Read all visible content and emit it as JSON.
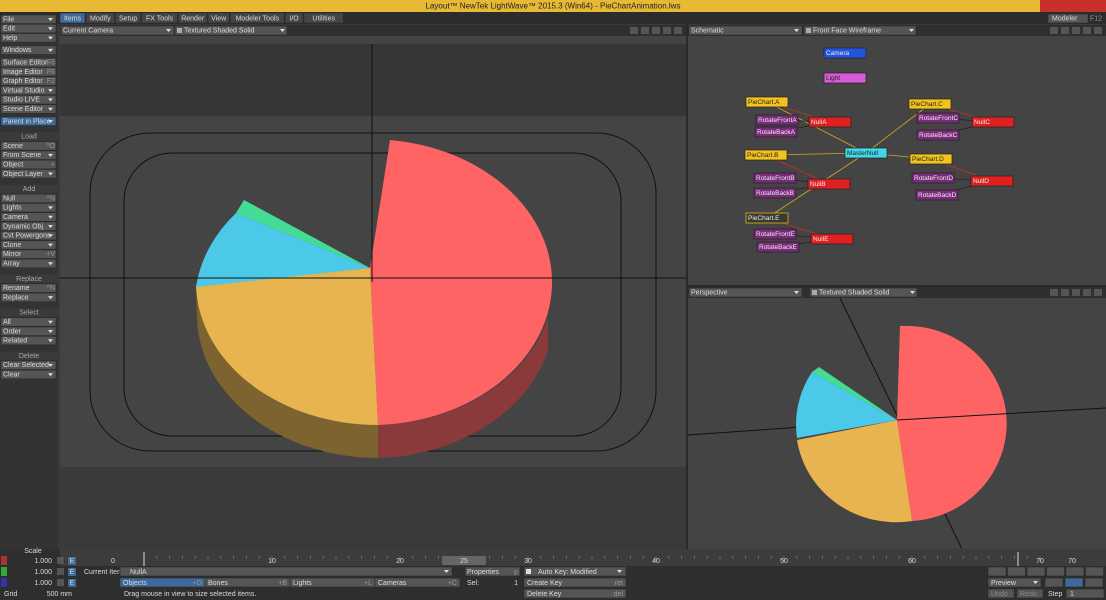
{
  "title": "Layout™ NewTek LightWave™ 2015.3 (Win64) - PieChartAnimation.lws",
  "tabs": [
    "Items",
    "Modify",
    "Setup",
    "FX Tools",
    "Render",
    "View",
    "Modeler Tools",
    "I/O",
    "Utilities"
  ],
  "modeler": {
    "label": "Modeler",
    "shortcut": "F12"
  },
  "left_panel": {
    "top": [
      {
        "label": "File"
      },
      {
        "label": "Edit"
      },
      {
        "label": "Help"
      },
      {
        "label": "Windows"
      },
      {
        "label": "Surface Editor",
        "shortcut": "F5"
      },
      {
        "label": "Image Editor",
        "shortcut": "F6"
      },
      {
        "label": "Graph Editor",
        "shortcut": "F2"
      },
      {
        "label": "Virtual Studio"
      },
      {
        "label": "Studio LIVE"
      },
      {
        "label": "Scene Editor"
      },
      {
        "label": "Parent in Place"
      }
    ],
    "sections": [
      {
        "header": "Load",
        "items": [
          {
            "label": "Scene",
            "shortcut": "^O"
          },
          {
            "label": "From Scene"
          },
          {
            "label": "Object",
            "shortcut": "+"
          },
          {
            "label": "Object Layer"
          }
        ]
      },
      {
        "header": "Add",
        "items": [
          {
            "label": "Null",
            "shortcut": "^N"
          },
          {
            "label": "Lights"
          },
          {
            "label": "Camera"
          },
          {
            "label": "Dynamic Obj"
          },
          {
            "label": "Cvt Powergons"
          },
          {
            "label": "Clone"
          },
          {
            "label": "Mirror",
            "shortcut": "+V"
          },
          {
            "label": "Array"
          }
        ]
      },
      {
        "header": "Replace",
        "items": [
          {
            "label": "Rename",
            "shortcut": "^N"
          },
          {
            "label": "Replace"
          }
        ]
      },
      {
        "header": "Select",
        "items": [
          {
            "label": "All"
          },
          {
            "label": "Order"
          },
          {
            "label": "Related"
          }
        ]
      },
      {
        "header": "Delete",
        "items": [
          {
            "label": "Clear Selected"
          },
          {
            "label": "Clear"
          }
        ]
      }
    ]
  },
  "main_view": {
    "view": "Current Camera",
    "mode": "Textured Shaded Solid"
  },
  "schematic_view": {
    "view": "Schematic",
    "mode": "Front Face Wireframe",
    "nodes": [
      "Camera",
      "Light",
      "PieChart.A",
      "NullA",
      "RotateFrontA",
      "RotateBackA",
      "PieChart.C",
      "RotateFrontC",
      "NullC",
      "RotateBackC",
      "PieChart.B",
      "MasterNull",
      "PieChart.D",
      "RotateFrontB",
      "NullB",
      "RotateBackB",
      "RotateFrontD",
      "NullD",
      "RotateBackD",
      "PieChart.E",
      "RotateFrontE",
      "NullE",
      "RotateBackE"
    ]
  },
  "perspective_view": {
    "view": "Perspective",
    "mode": "Textured Shaded Solid"
  },
  "timeline": {
    "ticks": [
      0,
      10,
      20,
      30,
      40,
      50,
      60,
      70
    ],
    "current_frame": 25,
    "end_frame": 70
  },
  "key_button": "E",
  "scale": {
    "label": "Scale",
    "values": [
      "1.000",
      "1.000",
      "1.000"
    ]
  },
  "grid": {
    "label": "Grid",
    "value": "500 mm"
  },
  "current_item": {
    "label": "Current Item",
    "value": "NullA"
  },
  "properties": {
    "label": "Properties",
    "shortcut": "p"
  },
  "auto_key": "Auto Key: Modified",
  "item_types": [
    {
      "label": "Objects",
      "shortcut": "+O"
    },
    {
      "label": "Bones",
      "shortcut": "+B"
    },
    {
      "label": "Lights",
      "shortcut": "+L"
    },
    {
      "label": "Cameras",
      "shortcut": "+C"
    }
  ],
  "sel": {
    "label": "Sel:",
    "value": 1
  },
  "create_key": {
    "label": "Create Key",
    "shortcut": "ret"
  },
  "delete_key": {
    "label": "Delete Key",
    "shortcut": "del"
  },
  "status": "Drag mouse in view to size selected items.",
  "preview": "Preview",
  "step": {
    "label": "Step",
    "value": 1
  },
  "undo": "Undo",
  "redo": "Redo"
}
